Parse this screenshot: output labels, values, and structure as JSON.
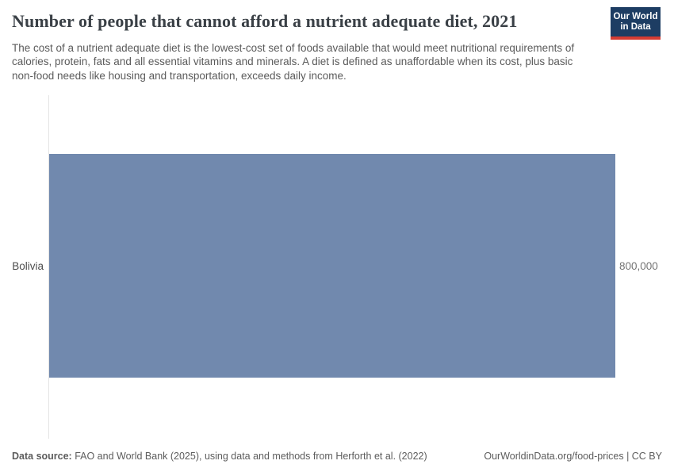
{
  "header": {
    "title": "Number of people that cannot afford a nutrient adequate diet, 2021",
    "subtitle": "The cost of a nutrient adequate diet is the lowest-cost set of foods available that would meet nutritional requirements of calories, protein, fats and all essential vitamins and minerals. A diet is defined as unaffordable when its cost, plus basic non-food needs like housing and transportation, exceeds daily income.",
    "logo": {
      "line1": "Our World",
      "line2": "in Data",
      "bg_color": "#1d3d63",
      "accent_color": "#d43c33"
    }
  },
  "chart_data": {
    "type": "bar",
    "orientation": "horizontal",
    "title": "Number of people that cannot afford a nutrient adequate diet, 2021",
    "categories": [
      "Bolivia"
    ],
    "values": [
      800000
    ],
    "value_labels": [
      "800,000"
    ],
    "xlim": [
      0,
      800000
    ],
    "grid": false,
    "legend": false,
    "bar_color": "#7189ae",
    "axis_line_color": "#e4e4e4"
  },
  "footer": {
    "datasource_label": "Data source:",
    "datasource_text": " FAO and World Bank (2025), using data and methods from Herforth et al. (2022)",
    "right_text": "OurWorldinData.org/food-prices | CC BY"
  }
}
